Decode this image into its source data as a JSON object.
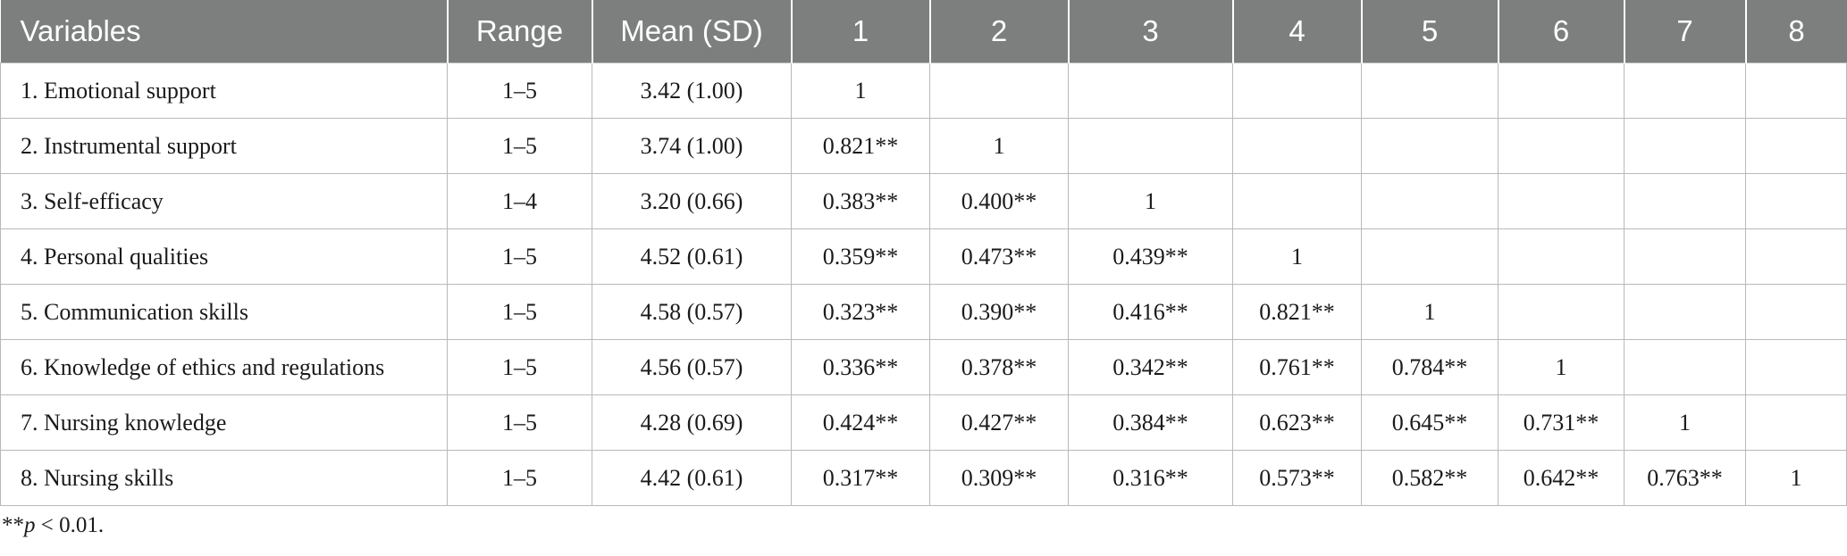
{
  "header": [
    "Variables",
    "Range",
    "Mean (SD)",
    "1",
    "2",
    "3",
    "4",
    "5",
    "6",
    "7",
    "8"
  ],
  "rows": [
    {
      "label": "1. Emotional support",
      "range": "1–5",
      "mean": "3.42 (1.00)",
      "c": [
        "1",
        "",
        "",
        "",
        "",
        "",
        "",
        ""
      ]
    },
    {
      "label": "2. Instrumental support",
      "range": "1–5",
      "mean": "3.74 (1.00)",
      "c": [
        "0.821**",
        "1",
        "",
        "",
        "",
        "",
        "",
        ""
      ]
    },
    {
      "label": "3. Self-efficacy",
      "range": "1–4",
      "mean": "3.20 (0.66)",
      "c": [
        "0.383**",
        "0.400**",
        "1",
        "",
        "",
        "",
        "",
        ""
      ]
    },
    {
      "label": "4. Personal qualities",
      "range": "1–5",
      "mean": "4.52 (0.61)",
      "c": [
        "0.359**",
        "0.473**",
        "0.439**",
        "1",
        "",
        "",
        "",
        ""
      ]
    },
    {
      "label": "5. Communication skills",
      "range": "1–5",
      "mean": "4.58 (0.57)",
      "c": [
        "0.323**",
        "0.390**",
        "0.416**",
        "0.821**",
        "1",
        "",
        "",
        ""
      ]
    },
    {
      "label": "6. Knowledge of ethics and regulations",
      "range": "1–5",
      "mean": "4.56 (0.57)",
      "c": [
        "0.336**",
        "0.378**",
        "0.342**",
        "0.761**",
        "0.784**",
        "1",
        "",
        ""
      ]
    },
    {
      "label": "7. Nursing knowledge",
      "range": "1–5",
      "mean": "4.28 (0.69)",
      "c": [
        "0.424**",
        "0.427**",
        "0.384**",
        "0.623**",
        "0.645**",
        "0.731**",
        "1",
        ""
      ]
    },
    {
      "label": "8. Nursing skills",
      "range": "1–5",
      "mean": "4.42 (0.61)",
      "c": [
        "0.317**",
        "0.309**",
        "0.316**",
        "0.573**",
        "0.582**",
        "0.642**",
        "0.763**",
        "1"
      ]
    }
  ],
  "footnote": {
    "stars": "**",
    "p": "p",
    "rest": " < 0.01."
  }
}
